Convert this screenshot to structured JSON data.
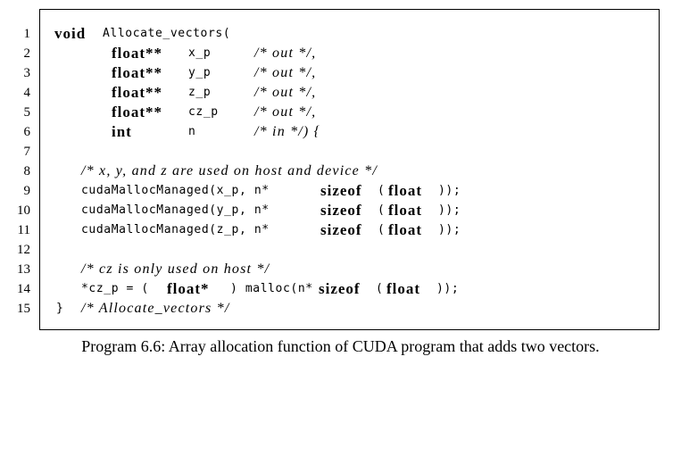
{
  "line_numbers": [
    "1",
    "2",
    "3",
    "4",
    "5",
    "6",
    "7",
    "8",
    "9",
    "10",
    "11",
    "12",
    "13",
    "14",
    "15"
  ],
  "code": {
    "l1": {
      "kw": "void",
      "rest": "Allocate_vectors("
    },
    "l2": {
      "kw": "float**",
      "name": "x_p",
      "comment": "/* out */,"
    },
    "l3": {
      "kw": "float**",
      "name": "y_p",
      "comment": "/* out */,"
    },
    "l4": {
      "kw": "float**",
      "name": "z_p",
      "comment": "/* out */,"
    },
    "l5": {
      "kw": "float**",
      "name": "cz_p",
      "comment": "/* out */,"
    },
    "l6": {
      "kw": "int",
      "name": "n",
      "comment": "/* in */) {"
    },
    "l8": {
      "comment": "/* x, y, and z are used on host and device */"
    },
    "l9": {
      "pre": "cudaMallocManaged(x_p, n*",
      "kw": "sizeof",
      "mid": "(",
      "kw2": "float",
      "post": "));"
    },
    "l10": {
      "pre": "cudaMallocManaged(y_p, n*",
      "kw": "sizeof",
      "mid": "(",
      "kw2": "float",
      "post": "));"
    },
    "l11": {
      "pre": "cudaMallocManaged(z_p, n*",
      "kw": "sizeof",
      "mid": "(",
      "kw2": "float",
      "post": "));"
    },
    "l13": {
      "comment": "/* cz is only used on host */"
    },
    "l14": {
      "pre": "*cz_p = (",
      "kw": "float*",
      "mid": ") malloc(n*",
      "kw2": "sizeof",
      "mid2": "(",
      "kw3": "float",
      "post": "));"
    },
    "l15": {
      "brace": "}",
      "comment": "/* Allocate_vectors */"
    }
  },
  "caption": "Program 6.6: Array allocation function of CUDA program that adds two vectors."
}
